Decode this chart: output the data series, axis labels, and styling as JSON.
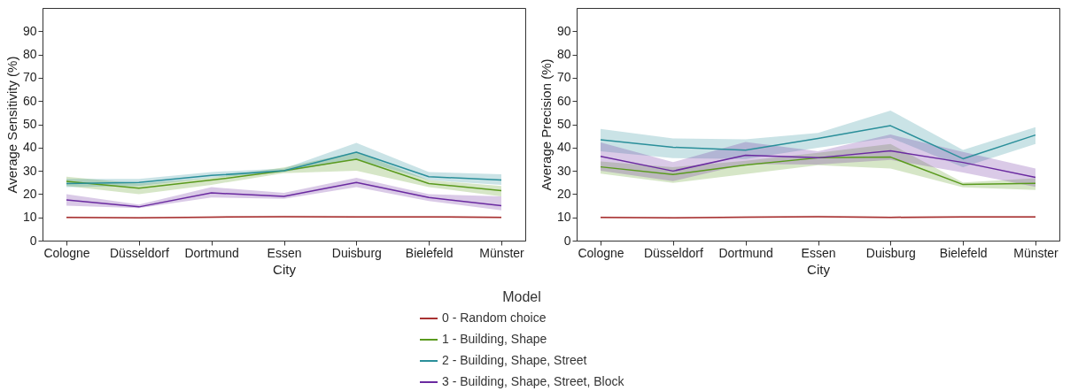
{
  "chart_data": [
    {
      "type": "line",
      "xlabel": "City",
      "ylabel": "Average Sensitivity (%)",
      "legend_title": "Model",
      "legend": "bottom",
      "grid": false,
      "marker": "none",
      "line_style": "solid",
      "categories": [
        "Cologne",
        "Düsseldorf",
        "Dortmund",
        "Essen",
        "Duisburg",
        "Bielefeld",
        "Münster"
      ],
      "ylim": [
        0,
        100
      ],
      "yticks": [
        0,
        10,
        20,
        30,
        40,
        50,
        60,
        70,
        80,
        90
      ],
      "series": [
        {
          "name": "0 - Random choice",
          "color": "#a83232",
          "values": [
            10,
            9.8,
            10.1,
            10.3,
            10.2,
            10.2,
            10
          ],
          "lower": [
            9.6,
            9.4,
            9.7,
            9.9,
            9.8,
            9.8,
            9.6
          ],
          "upper": [
            10.4,
            10.2,
            10.5,
            10.7,
            10.6,
            10.6,
            10.4
          ]
        },
        {
          "name": "1 - Building, Shape",
          "color": "#5a9a1e",
          "values": [
            25.5,
            22.5,
            26,
            30,
            35,
            24.5,
            21.5
          ],
          "lower": [
            23.5,
            20,
            24,
            29,
            30,
            23,
            19
          ],
          "upper": [
            27.5,
            24.5,
            27,
            31.5,
            38,
            26,
            23.5
          ]
        },
        {
          "name": "2 - Building, Shape, Street",
          "color": "#2a8f9a",
          "values": [
            24.5,
            25,
            28,
            30,
            38,
            27.5,
            26
          ],
          "lower": [
            23,
            23.5,
            27,
            29.5,
            35,
            26,
            24
          ],
          "upper": [
            26.5,
            26.5,
            29.5,
            31,
            42,
            29.5,
            28.5
          ]
        },
        {
          "name": "3 - Building, Shape, Street, Block",
          "color": "#6a2aa0",
          "values": [
            17.5,
            14.5,
            20.5,
            19,
            25,
            18.5,
            15
          ],
          "lower": [
            15,
            14,
            18.5,
            18,
            23,
            17,
            13
          ],
          "upper": [
            20,
            15.5,
            23,
            20.5,
            27,
            20,
            19
          ]
        }
      ]
    },
    {
      "type": "line",
      "xlabel": "City",
      "ylabel": "Average Precision (%)",
      "grid": false,
      "marker": "none",
      "line_style": "solid",
      "categories": [
        "Cologne",
        "Düsseldorf",
        "Dortmund",
        "Essen",
        "Duisburg",
        "Bielefeld",
        "Münster"
      ],
      "ylim": [
        0,
        100
      ],
      "yticks": [
        0,
        10,
        20,
        30,
        40,
        50,
        60,
        70,
        80,
        90
      ],
      "series": [
        {
          "name": "0 - Random choice",
          "color": "#a83232",
          "values": [
            10,
            9.8,
            10.1,
            10.3,
            10,
            10.2,
            10.2
          ],
          "lower": [
            9.6,
            9.4,
            9.7,
            9.9,
            9.6,
            9.8,
            9.8
          ],
          "upper": [
            10.4,
            10.2,
            10.5,
            10.7,
            10.4,
            10.6,
            10.6
          ]
        },
        {
          "name": "1 - Building, Shape",
          "color": "#5a9a1e",
          "values": [
            31.7,
            28.4,
            32.5,
            35.6,
            35.9,
            24.1,
            24.6
          ],
          "lower": [
            28.8,
            24.8,
            28.6,
            32.4,
            31,
            22.9,
            21.8
          ],
          "upper": [
            34,
            31.6,
            34.3,
            37.7,
            41.5,
            25,
            26.8
          ]
        },
        {
          "name": "2 - Building, Shape, Street",
          "color": "#2a8f9a",
          "values": [
            43.3,
            40.1,
            38.9,
            43.9,
            49.4,
            35.2,
            45.4
          ],
          "lower": [
            38.4,
            35.5,
            35.1,
            39.9,
            44.2,
            31.6,
            41.5
          ],
          "upper": [
            48,
            43.9,
            43.5,
            46.3,
            55.9,
            39,
            48.8
          ]
        },
        {
          "name": "3 - Building, Shape, Street, Block",
          "color": "#6a2aa0",
          "values": [
            36.2,
            29.9,
            36.7,
            35.6,
            38.6,
            33.6,
            27.2
          ],
          "lower": [
            30,
            25.6,
            32.9,
            32.7,
            34.7,
            29.3,
            23.1
          ],
          "upper": [
            42.2,
            33.7,
            42.4,
            38.4,
            45.6,
            38.1,
            31
          ]
        }
      ]
    }
  ]
}
